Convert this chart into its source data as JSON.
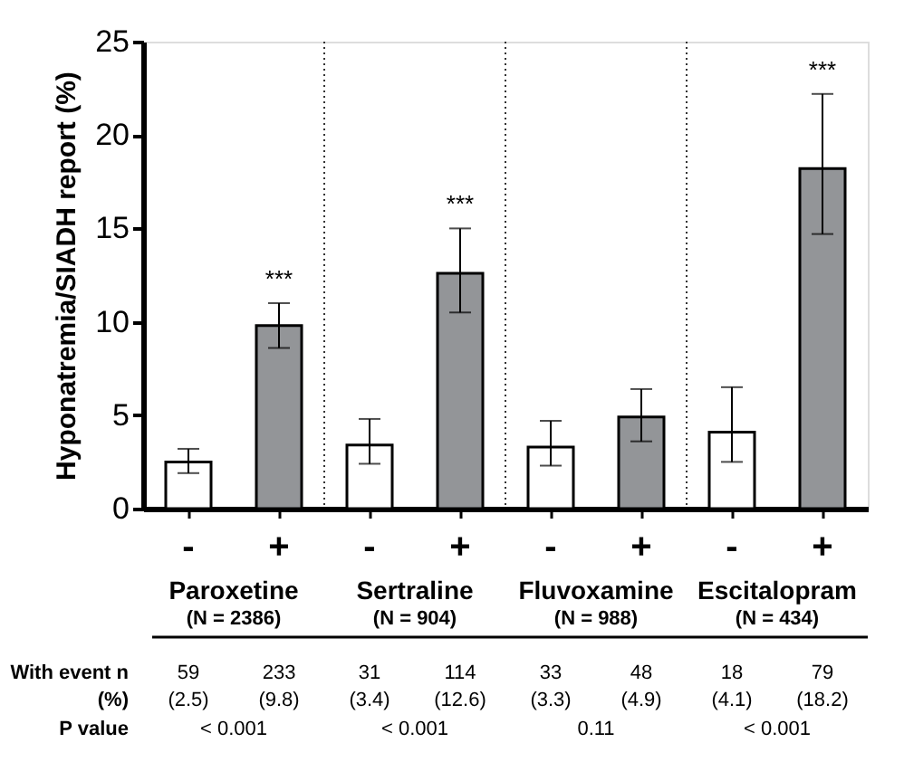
{
  "chart_data": {
    "type": "bar",
    "ylabel": "Hyponatremia/SIADH report (%)",
    "categories": [
      "-",
      "+",
      "-",
      "+",
      "-",
      "+",
      "-",
      "+"
    ],
    "values": [
      2.5,
      9.8,
      3.4,
      12.6,
      3.3,
      4.9,
      4.1,
      18.2
    ],
    "colors": [
      "#ffffff",
      "#939598",
      "#ffffff",
      "#939598",
      "#ffffff",
      "#939598",
      "#ffffff",
      "#939598"
    ],
    "errors": [
      [
        1.9,
        3.2
      ],
      [
        8.6,
        11.0
      ],
      [
        2.4,
        4.8
      ],
      [
        10.5,
        15.0
      ],
      [
        2.3,
        4.7
      ],
      [
        3.6,
        6.4
      ],
      [
        2.5,
        6.5
      ],
      [
        14.7,
        22.2
      ]
    ],
    "value_labels": [
      "(2.5)",
      "(9.8)",
      "(3.4)",
      "(12.6)",
      "(3.3)",
      "(4.9)",
      "(4.1)",
      "(18.2)"
    ],
    "ylim": [
      0,
      25
    ],
    "yticks": [
      0,
      5,
      10,
      15,
      20,
      25
    ],
    "grid": false,
    "annotations": [
      "Paroxetine",
      "Sertraline",
      "Fluvoxamine",
      "Escitalopram",
      "(N = 2386)",
      "(N = 904)",
      "(N = 988)",
      "(N = 434)",
      "With event n",
      "(%)",
      "P value",
      "59",
      "233",
      "31",
      "114",
      "33",
      "48",
      "18",
      "79",
      "< 0.001",
      "< 0.001",
      "0.11",
      "< 0.001",
      "***",
      "***",
      "***"
    ]
  }
}
